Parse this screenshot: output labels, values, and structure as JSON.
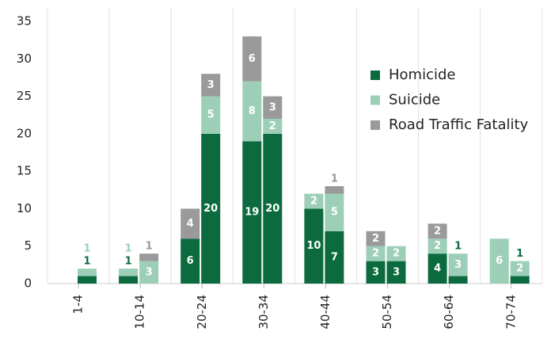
{
  "chart_data": {
    "type": "stacked-bar-pairs",
    "categories": [
      "1-4",
      "10-14",
      "20-24",
      "30-34",
      "40-44",
      "50-54",
      "60-64",
      "70-74"
    ],
    "series": [
      {
        "name": "Homicide",
        "color": "#0b6b3f",
        "values": [
          [
            null,
            1
          ],
          [
            1,
            null
          ],
          [
            6,
            20
          ],
          [
            19,
            20
          ],
          [
            10,
            7
          ],
          [
            3,
            3
          ],
          [
            4,
            1
          ],
          [
            null,
            1
          ]
        ]
      },
      {
        "name": "Suicide",
        "color": "#9dcfb8",
        "values": [
          [
            null,
            1
          ],
          [
            1,
            3
          ],
          [
            null,
            5
          ],
          [
            8,
            2
          ],
          [
            2,
            5
          ],
          [
            2,
            2
          ],
          [
            2,
            3
          ],
          [
            6,
            2
          ]
        ]
      },
      {
        "name": "Road Traffic Fatality",
        "color": "#9a9a9a",
        "values": [
          [
            null,
            null
          ],
          [
            null,
            1
          ],
          [
            4,
            3
          ],
          [
            6,
            3
          ],
          [
            null,
            1
          ],
          [
            2,
            null
          ],
          [
            2,
            null
          ],
          [
            null,
            null
          ]
        ]
      }
    ],
    "ylim": [
      0,
      35
    ],
    "yticks": [
      0,
      5,
      10,
      15,
      20,
      25,
      30,
      35
    ],
    "legend": "right"
  }
}
